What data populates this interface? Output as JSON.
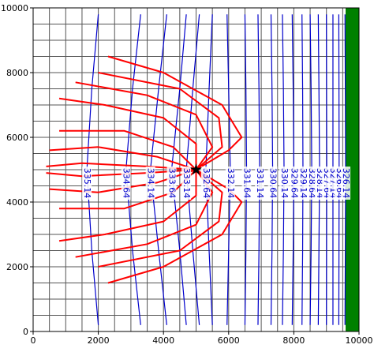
{
  "chart_data": {
    "type": "contour",
    "xlim": [
      0,
      10000
    ],
    "ylim": [
      0,
      10000
    ],
    "xticks": [
      0,
      2000,
      4000,
      6000,
      8000,
      10000
    ],
    "yticks": [
      0,
      2000,
      4000,
      6000,
      8000,
      10000
    ],
    "grid": true,
    "contour_color": "#0000cc",
    "pathline_color": "#ff0000",
    "well": {
      "x": 5000,
      "y": 5000
    },
    "contours": [
      {
        "level": 335.14,
        "x": [
          2000,
          1800,
          1650,
          1800,
          2000
        ],
        "y": [
          9800,
          7500,
          5000,
          2500,
          200
        ]
      },
      {
        "level": 334.64,
        "x": [
          3300,
          3050,
          2850,
          3050,
          3300
        ],
        "y": [
          9800,
          7500,
          5000,
          2500,
          200
        ]
      },
      {
        "level": 334.14,
        "x": [
          4100,
          3850,
          3600,
          3850,
          4100
        ],
        "y": [
          9800,
          7500,
          5000,
          2500,
          200
        ]
      },
      {
        "level": 333.64,
        "x": [
          4700,
          4500,
          4250,
          4500,
          4700
        ],
        "y": [
          9800,
          7500,
          5000,
          2500,
          200
        ]
      },
      {
        "level": 333.14,
        "x": [
          5100,
          4900,
          4700,
          4900,
          5100
        ],
        "y": [
          9800,
          7500,
          5000,
          2500,
          200
        ]
      },
      {
        "level": 332.64,
        "x": [
          5500,
          5400,
          5300,
          5400,
          5500
        ],
        "y": [
          9800,
          7500,
          5000,
          2500,
          200
        ]
      },
      {
        "level": 332.14,
        "x": [
          5950,
          6000,
          6050,
          6000,
          5950
        ],
        "y": [
          9800,
          7500,
          5000,
          2500,
          200
        ]
      },
      {
        "level": 331.64,
        "x": [
          6500,
          6530,
          6550,
          6530,
          6500
        ],
        "y": [
          9800,
          7500,
          5000,
          2500,
          200
        ]
      },
      {
        "level": 331.14,
        "x": [
          6900,
          6930,
          6950,
          6930,
          6900
        ],
        "y": [
          9800,
          7500,
          5000,
          2500,
          200
        ]
      },
      {
        "level": 330.64,
        "x": [
          7300,
          7330,
          7350,
          7330,
          7300
        ],
        "y": [
          9800,
          7500,
          5000,
          2500,
          200
        ]
      },
      {
        "level": 330.14,
        "x": [
          7650,
          7680,
          7700,
          7680,
          7650
        ],
        "y": [
          9800,
          7500,
          5000,
          2500,
          200
        ]
      },
      {
        "level": 329.64,
        "x": [
          7950,
          7980,
          8000,
          7980,
          7950
        ],
        "y": [
          9800,
          7500,
          5000,
          2500,
          200
        ]
      },
      {
        "level": 329.14,
        "x": [
          8250,
          8270,
          8280,
          8270,
          8250
        ],
        "y": [
          9800,
          7500,
          5000,
          2500,
          200
        ]
      },
      {
        "level": 328.64,
        "x": [
          8500,
          8530,
          8550,
          8530,
          8500
        ],
        "y": [
          9800,
          7500,
          5000,
          2500,
          200
        ]
      },
      {
        "level": 328.14,
        "x": [
          8750,
          8770,
          8790,
          8770,
          8750
        ],
        "y": [
          9800,
          7500,
          5000,
          2500,
          200
        ]
      },
      {
        "level": 327.64,
        "x": [
          9000,
          9005,
          9010,
          9005,
          9000
        ],
        "y": [
          9800,
          7500,
          5000,
          2500,
          200
        ]
      },
      {
        "level": 327.14,
        "x": [
          9200,
          9200,
          9200,
          9200,
          9200
        ],
        "y": [
          9800,
          7500,
          5000,
          2500,
          200
        ]
      },
      {
        "level": 326.64,
        "x": [
          9380,
          9385,
          9390,
          9385,
          9380
        ],
        "y": [
          9800,
          7500,
          5000,
          2500,
          200
        ]
      },
      {
        "level": 326.14,
        "x": [
          9570,
          9580,
          9590,
          9580,
          9570
        ],
        "y": [
          9800,
          7500,
          5000,
          2500,
          200
        ]
      }
    ],
    "pathlines": [
      {
        "x": [
          5000,
          6000,
          6400,
          5800,
          4000,
          2300
        ],
        "y": [
          5000,
          5600,
          6000,
          7000,
          8000,
          8500
        ]
      },
      {
        "x": [
          5000,
          5800,
          5700,
          4500,
          2000
        ],
        "y": [
          5000,
          5700,
          6600,
          7500,
          8000
        ]
      },
      {
        "x": [
          5000,
          5500,
          5000,
          3500,
          1300
        ],
        "y": [
          5000,
          5700,
          6700,
          7300,
          7700
        ]
      },
      {
        "x": [
          5000,
          5000,
          4000,
          2200,
          800
        ],
        "y": [
          5000,
          5800,
          6600,
          7000,
          7200
        ]
      },
      {
        "x": [
          5000,
          4300,
          2800,
          800
        ],
        "y": [
          5000,
          5700,
          6200,
          6200
        ]
      },
      {
        "x": [
          5000,
          3800,
          2000,
          500
        ],
        "y": [
          5000,
          5400,
          5700,
          5600
        ]
      },
      {
        "x": [
          5000,
          3500,
          1500,
          400
        ],
        "y": [
          5000,
          5100,
          5200,
          5100
        ]
      },
      {
        "x": [
          5000,
          6000,
          6400,
          5800,
          4000,
          2300
        ],
        "y": [
          5000,
          4400,
          4000,
          3000,
          2000,
          1500
        ]
      },
      {
        "x": [
          5000,
          5800,
          5700,
          4500,
          2000
        ],
        "y": [
          5000,
          4300,
          3400,
          2500,
          2000
        ]
      },
      {
        "x": [
          5000,
          5500,
          5000,
          3500,
          1300
        ],
        "y": [
          5000,
          4300,
          3300,
          2700,
          2300
        ]
      },
      {
        "x": [
          5000,
          5000,
          4000,
          2200,
          800
        ],
        "y": [
          5000,
          4200,
          3400,
          3000,
          2800
        ]
      },
      {
        "x": [
          5000,
          4300,
          2800,
          800
        ],
        "y": [
          5000,
          4300,
          3800,
          3800
        ]
      },
      {
        "x": [
          5000,
          3800,
          2000,
          500
        ],
        "y": [
          5000,
          4600,
          4300,
          4400
        ]
      },
      {
        "x": [
          5000,
          3500,
          1500,
          400
        ],
        "y": [
          5000,
          4900,
          4800,
          4900
        ]
      }
    ]
  }
}
